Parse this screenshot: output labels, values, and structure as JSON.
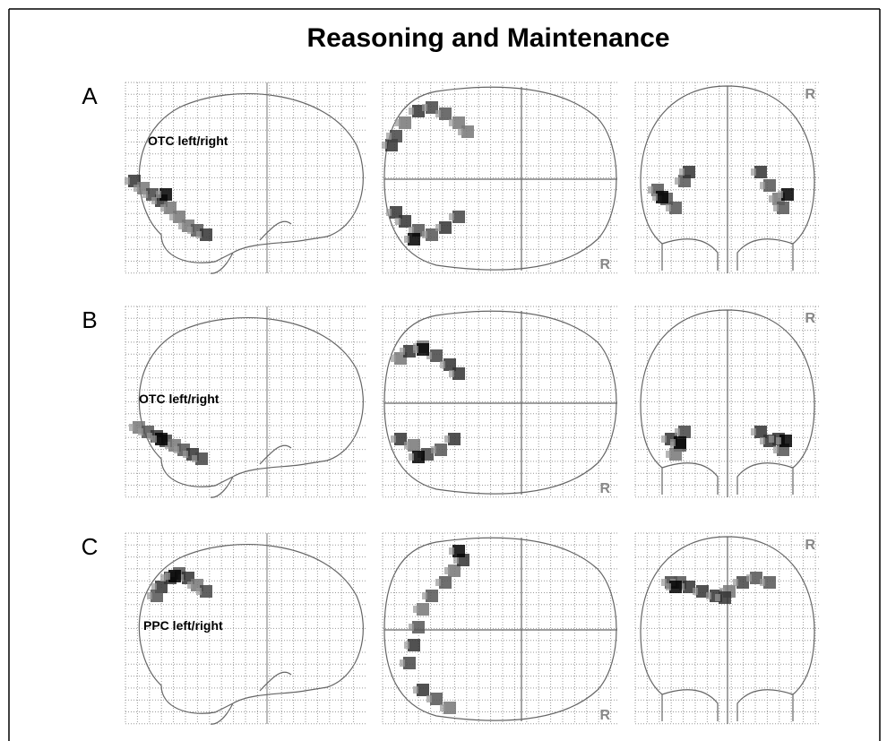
{
  "title": "Reasoning and Maintenance",
  "rows": [
    {
      "label": "A",
      "region": "OTC left/right",
      "axial_marker": "R",
      "coronal_marker": "R"
    },
    {
      "label": "B",
      "region": "OTC left/right",
      "axial_marker": "R",
      "coronal_marker": "R"
    },
    {
      "label": "C",
      "region": "PPC left/right",
      "axial_marker": "R",
      "coronal_marker": "R"
    }
  ]
}
